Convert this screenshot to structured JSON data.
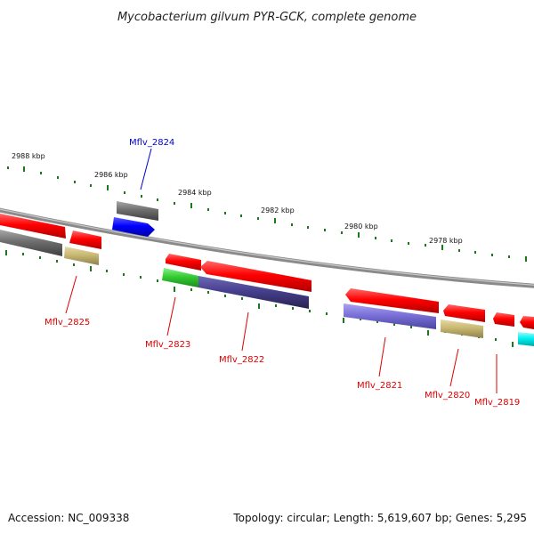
{
  "title": "Mycobacterium gilvum PYR-GCK, complete genome",
  "footer": {
    "accession": "Accession: NC_009338",
    "summary": "Topology: circular; Length: 5,619,607 bp; Genes: 5,295"
  },
  "ticks": [
    "2988 kbp",
    "2986 kbp",
    "2984 kbp",
    "2982 kbp",
    "2980 kbp",
    "2978 kbp"
  ],
  "genes": [
    {
      "name": "Mflv_2824",
      "color": "#0000cc"
    },
    {
      "name": "Mflv_2825",
      "color": "#dd0000"
    },
    {
      "name": "Mflv_2823",
      "color": "#dd0000"
    },
    {
      "name": "Mflv_2822",
      "color": "#dd0000"
    },
    {
      "name": "Mflv_2821",
      "color": "#dd0000"
    },
    {
      "name": "Mflv_2820",
      "color": "#dd0000"
    },
    {
      "name": "Mflv_2819",
      "color": "#dd0000"
    }
  ],
  "colors": {
    "backbone": "#8a8a8a",
    "tick": "#1a7a1a",
    "cds": "#ff0000",
    "cds_rev": "#0000ff",
    "gray": "#6e6e6e",
    "khaki": "#c8b873",
    "green": "#33cc33",
    "indigo": "#46408e",
    "lavender": "#7a70d8",
    "cyan": "#00f0f0"
  }
}
